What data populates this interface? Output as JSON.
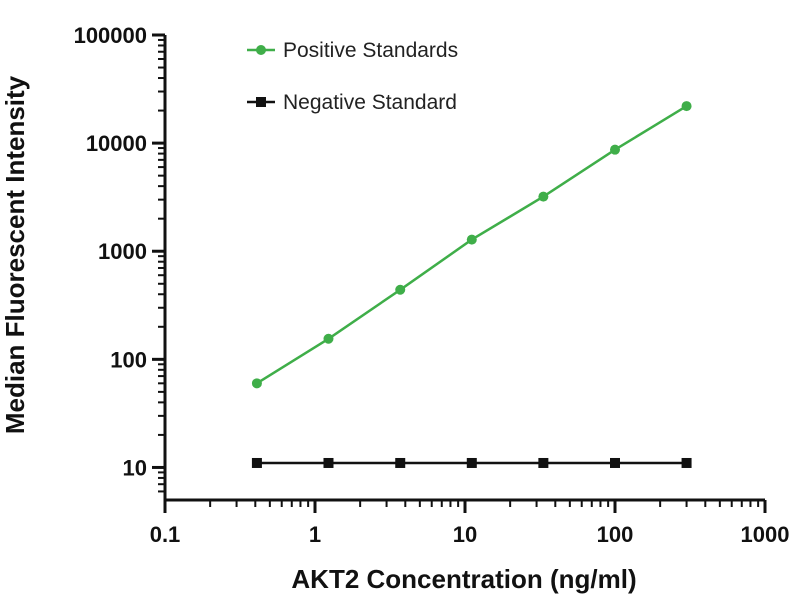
{
  "chart_data": {
    "type": "line",
    "xscale": "log",
    "yscale": "log",
    "xlabel": "AKT2 Concentration (ng/ml)",
    "ylabel": "Median Fluorescent Intensity",
    "xlim": [
      0.1,
      1000
    ],
    "ylim": [
      5,
      100000
    ],
    "xticks": [
      0.1,
      1,
      10,
      100,
      1000
    ],
    "xtick_labels": [
      "0.1",
      "1",
      "10",
      "100",
      "1000"
    ],
    "yticks": [
      10,
      100,
      1000,
      10000,
      100000
    ],
    "ytick_labels": [
      "10",
      "100",
      "1000",
      "10000",
      "100000"
    ],
    "grid": false,
    "legend_position": "top-left",
    "series": [
      {
        "name": "Positive Standards",
        "color": "#3fae49",
        "marker": "circle",
        "x": [
          0.41,
          1.23,
          3.7,
          11.1,
          33.3,
          100,
          300
        ],
        "y": [
          60,
          155,
          440,
          1280,
          3200,
          8700,
          22000
        ]
      },
      {
        "name": "Negative Standard",
        "color": "#111111",
        "marker": "square",
        "x": [
          0.41,
          1.23,
          3.7,
          11.1,
          33.3,
          100,
          300
        ],
        "y": [
          11,
          11,
          11,
          11,
          11,
          11,
          11
        ]
      }
    ]
  }
}
